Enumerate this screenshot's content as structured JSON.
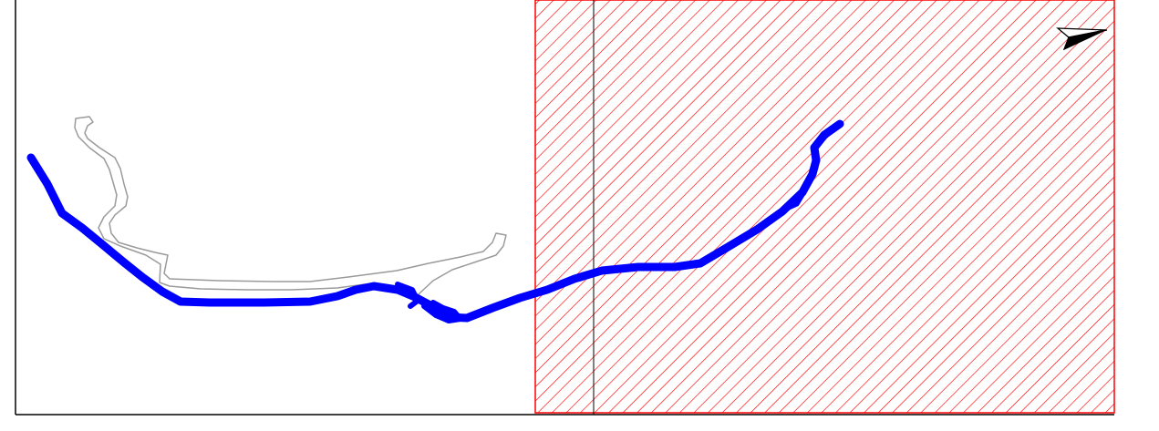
{
  "map": {
    "colors": {
      "background": "#ffffff",
      "frame": "#000000",
      "track": "#0000ff",
      "outline_path": "#9a9a9a",
      "hatch": "#ff0000",
      "divider": "#000000",
      "north_arrow": "#000000"
    },
    "layers": [
      {
        "name": "route-track",
        "style": "thick-blue-line"
      },
      {
        "name": "outline-path",
        "style": "thin-grey-line"
      },
      {
        "name": "hatched-zone",
        "style": "red-diagonal-hatch"
      },
      {
        "name": "divider-line",
        "style": "thin-black-line"
      }
    ],
    "icons": {
      "north_arrow": "north-arrow-icon"
    }
  }
}
